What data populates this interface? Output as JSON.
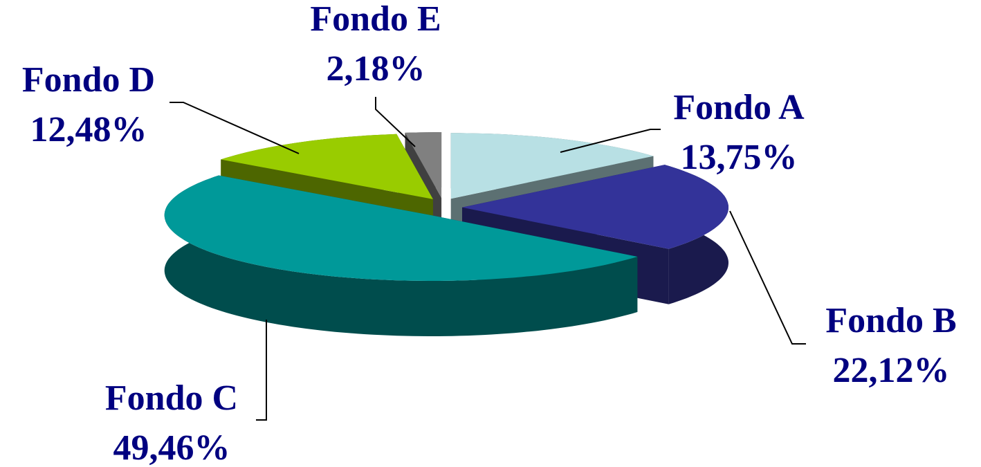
{
  "chart_data": {
    "type": "pie",
    "categories": [
      "Fondo A",
      "Fondo B",
      "Fondo C",
      "Fondo D",
      "Fondo E"
    ],
    "values": [
      13.75,
      22.12,
      49.46,
      12.48,
      2.18
    ],
    "value_labels": [
      "13,75%",
      "22,12%",
      "49,46%",
      "12,48%",
      "2,18%"
    ],
    "colors": [
      "#b8e0e4",
      "#333399",
      "#009999",
      "#99cc00",
      "#808080"
    ]
  }
}
